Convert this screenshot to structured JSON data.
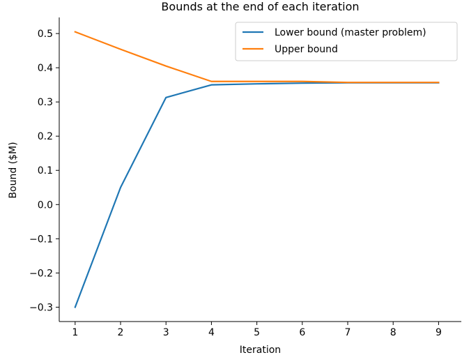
{
  "chart_data": {
    "type": "line",
    "title": "Bounds at the end of each iteration",
    "xlabel": "Iteration",
    "ylabel": "Bound ($M)",
    "x": [
      1,
      2,
      3,
      4,
      5,
      6,
      7,
      8,
      9
    ],
    "xticks": [
      "1",
      "2",
      "3",
      "4",
      "5",
      "6",
      "7",
      "8",
      "9"
    ],
    "xlim": [
      0.65,
      9.5
    ],
    "ylim": [
      -0.342,
      0.543
    ],
    "yticks": [
      -0.3,
      -0.2,
      -0.1,
      0.0,
      0.1,
      0.2,
      0.3,
      0.4,
      0.5
    ],
    "ytick_labels": [
      "−0.3",
      "−0.2",
      "−0.1",
      "0.0",
      "0.1",
      "0.2",
      "0.3",
      "0.4",
      "0.5"
    ],
    "grid": false,
    "legend_position": "top-right",
    "series": [
      {
        "name": "Lower bound (master problem)",
        "color": "#1f77b4",
        "values": [
          -0.3,
          0.05,
          0.313,
          0.35,
          0.353,
          0.355,
          0.356,
          0.356,
          0.356
        ]
      },
      {
        "name": "Upper bound",
        "color": "#ff7f0e",
        "values": [
          0.505,
          0.454,
          0.405,
          0.36,
          0.36,
          0.36,
          0.357,
          0.357,
          0.357
        ]
      }
    ]
  }
}
